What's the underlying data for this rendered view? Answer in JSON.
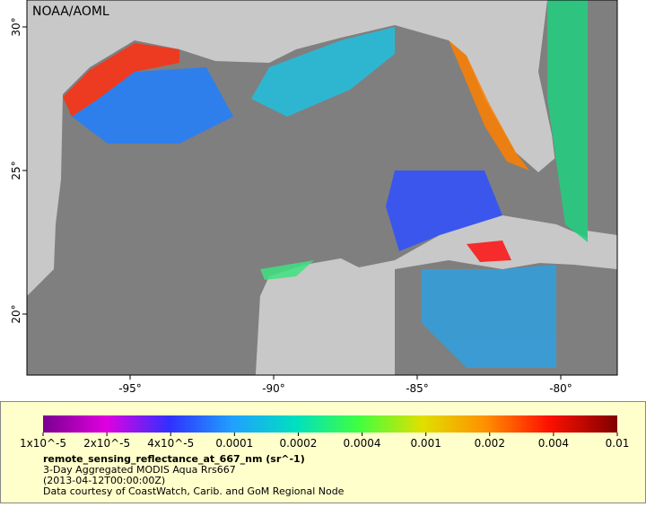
{
  "map": {
    "credit": "NOAA/AOML",
    "lon_labels": [
      "-95°",
      "-90°",
      "-85°",
      "-80°"
    ],
    "lat_labels": [
      "30°",
      "25°",
      "20°"
    ],
    "colorbar": {
      "labels": [
        "1x10^-5",
        "2x10^-5",
        "4x10^-5",
        "0.0001",
        "0.0002",
        "0.0004",
        "0.001",
        "0.002",
        "0.004",
        "0.01"
      ]
    },
    "caption": {
      "title": "remote_sensing_reflectance_at_667_nm (sr^-1)",
      "lines": [
        "3-Day Aggregated MODIS Aqua Rrs667",
        "(2013-04-12T00:00:00Z)",
        "Data courtesy of CoastWatch, Carib. and GoM Regional Node"
      ]
    }
  }
}
